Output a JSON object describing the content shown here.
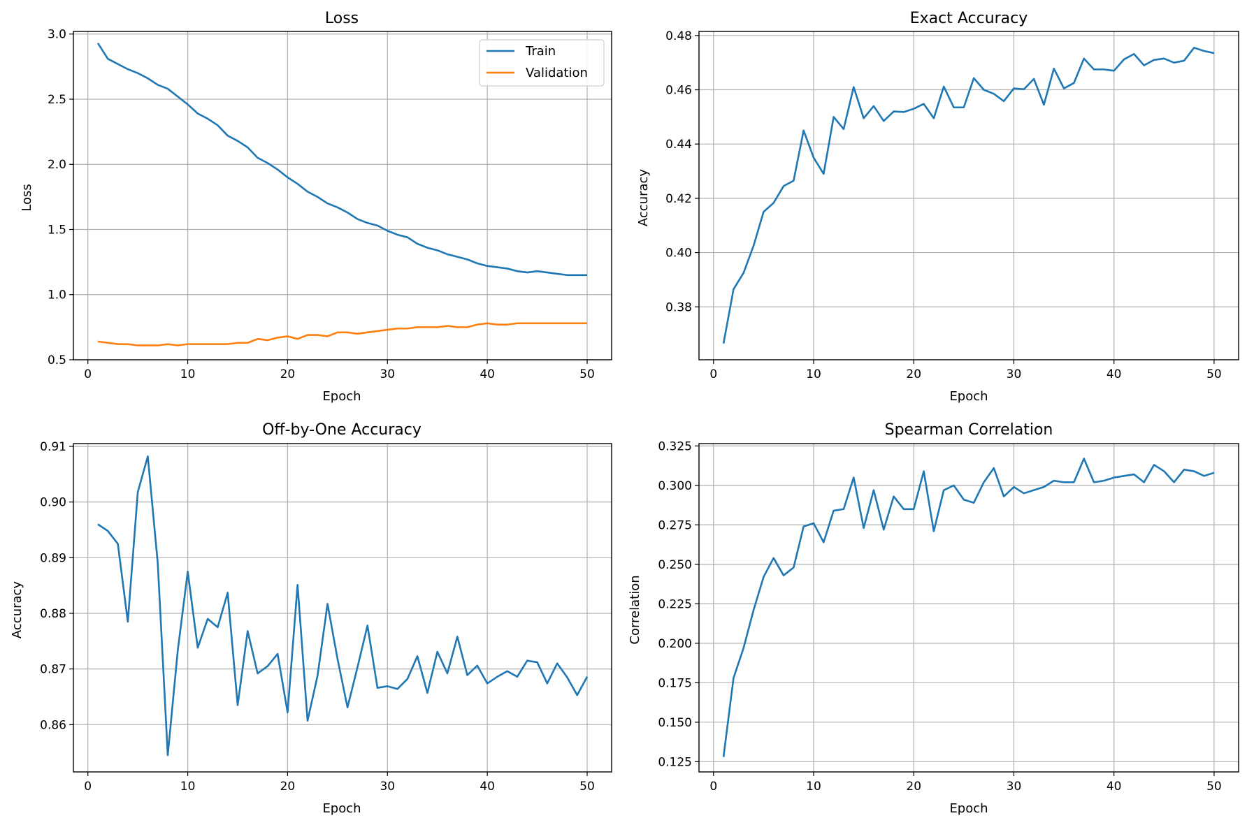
{
  "colors": {
    "train": "#1f77b4",
    "validation": "#ff7f0e",
    "grid": "#b0b0b0"
  },
  "chart_data": [
    {
      "type": "line",
      "title": "Loss",
      "xlabel": "Epoch",
      "ylabel": "Loss",
      "xlim": [
        -1.45,
        52.45
      ],
      "ylim": [
        0.5,
        3.02
      ],
      "xticks": [
        0,
        10,
        20,
        30,
        40,
        50
      ],
      "xtick_labels": [
        "0",
        "10",
        "20",
        "30",
        "40",
        "50"
      ],
      "yticks": [
        0.5,
        1.0,
        1.5,
        2.0,
        2.5,
        3.0
      ],
      "ytick_labels": [
        "0.5",
        "1.0",
        "1.5",
        "2.0",
        "2.5",
        "3.0"
      ],
      "grid": true,
      "legend": "top-right",
      "x": [
        1,
        2,
        3,
        4,
        5,
        6,
        7,
        8,
        9,
        10,
        11,
        12,
        13,
        14,
        15,
        16,
        17,
        18,
        19,
        20,
        21,
        22,
        23,
        24,
        25,
        26,
        27,
        28,
        29,
        30,
        31,
        32,
        33,
        34,
        35,
        36,
        37,
        38,
        39,
        40,
        41,
        42,
        43,
        44,
        45,
        46,
        47,
        48,
        49,
        50
      ],
      "series": [
        {
          "name": "Train",
          "color": "#1f77b4",
          "values": [
            2.93,
            2.81,
            2.77,
            2.73,
            2.7,
            2.66,
            2.61,
            2.58,
            2.52,
            2.46,
            2.39,
            2.35,
            2.3,
            2.22,
            2.18,
            2.13,
            2.05,
            2.01,
            1.96,
            1.9,
            1.85,
            1.79,
            1.75,
            1.7,
            1.67,
            1.63,
            1.58,
            1.55,
            1.53,
            1.49,
            1.46,
            1.44,
            1.39,
            1.36,
            1.34,
            1.31,
            1.29,
            1.27,
            1.24,
            1.22,
            1.21,
            1.2,
            1.18,
            1.17,
            1.18,
            1.17,
            1.16,
            1.15,
            1.15,
            1.15
          ]
        },
        {
          "name": "Validation",
          "color": "#ff7f0e",
          "values": [
            0.64,
            0.63,
            0.62,
            0.62,
            0.61,
            0.61,
            0.61,
            0.62,
            0.61,
            0.62,
            0.62,
            0.62,
            0.62,
            0.62,
            0.63,
            0.63,
            0.66,
            0.65,
            0.67,
            0.68,
            0.66,
            0.69,
            0.69,
            0.68,
            0.71,
            0.71,
            0.7,
            0.71,
            0.72,
            0.73,
            0.74,
            0.74,
            0.75,
            0.75,
            0.75,
            0.76,
            0.75,
            0.75,
            0.77,
            0.78,
            0.77,
            0.77,
            0.78,
            0.78,
            0.78,
            0.78,
            0.78,
            0.78,
            0.78,
            0.78
          ]
        }
      ]
    },
    {
      "type": "line",
      "title": "Exact Accuracy",
      "xlabel": "Epoch",
      "ylabel": "Accuracy",
      "xlim": [
        -1.45,
        52.45
      ],
      "ylim": [
        0.3605,
        0.4815
      ],
      "xticks": [
        0,
        10,
        20,
        30,
        40,
        50
      ],
      "xtick_labels": [
        "0",
        "10",
        "20",
        "30",
        "40",
        "50"
      ],
      "yticks": [
        0.38,
        0.4,
        0.42,
        0.44,
        0.46,
        0.48
      ],
      "ytick_labels": [
        "0.38",
        "0.40",
        "0.42",
        "0.44",
        "0.46",
        "0.48"
      ],
      "grid": true,
      "x": [
        1,
        2,
        3,
        4,
        5,
        6,
        7,
        8,
        9,
        10,
        11,
        12,
        13,
        14,
        15,
        16,
        17,
        18,
        19,
        20,
        21,
        22,
        23,
        24,
        25,
        26,
        27,
        28,
        29,
        30,
        31,
        32,
        33,
        34,
        35,
        36,
        37,
        38,
        39,
        40,
        41,
        42,
        43,
        44,
        45,
        46,
        47,
        48,
        49,
        50
      ],
      "series": [
        {
          "color": "#1f77b4",
          "values": [
            0.3665,
            0.3865,
            0.3925,
            0.4025,
            0.415,
            0.4183,
            0.4245,
            0.4265,
            0.445,
            0.435,
            0.429,
            0.45,
            0.4455,
            0.461,
            0.4495,
            0.454,
            0.4485,
            0.452,
            0.4518,
            0.453,
            0.4548,
            0.4495,
            0.4612,
            0.4535,
            0.4535,
            0.4643,
            0.46,
            0.4585,
            0.4558,
            0.4605,
            0.4602,
            0.464,
            0.4545,
            0.4678,
            0.4605,
            0.4625,
            0.4715,
            0.4675,
            0.4675,
            0.467,
            0.4712,
            0.4732,
            0.469,
            0.471,
            0.4715,
            0.47,
            0.4707,
            0.4755,
            0.4743,
            0.4735
          ]
        }
      ]
    },
    {
      "type": "line",
      "title": "Off-by-One Accuracy",
      "xlabel": "Epoch",
      "ylabel": "Accuracy",
      "xlim": [
        -1.45,
        52.45
      ],
      "ylim": [
        0.8515,
        0.9105
      ],
      "xticks": [
        0,
        10,
        20,
        30,
        40,
        50
      ],
      "xtick_labels": [
        "0",
        "10",
        "20",
        "30",
        "40",
        "50"
      ],
      "yticks": [
        0.86,
        0.87,
        0.88,
        0.89,
        0.9,
        0.91
      ],
      "ytick_labels": [
        "0.86",
        "0.87",
        "0.88",
        "0.89",
        "0.90",
        "0.91"
      ],
      "grid": true,
      "x": [
        1,
        2,
        3,
        4,
        5,
        6,
        7,
        8,
        9,
        10,
        11,
        12,
        13,
        14,
        15,
        16,
        17,
        18,
        19,
        20,
        21,
        22,
        23,
        24,
        25,
        26,
        27,
        28,
        29,
        30,
        31,
        32,
        33,
        34,
        35,
        36,
        37,
        38,
        39,
        40,
        41,
        42,
        43,
        44,
        45,
        46,
        47,
        48,
        49,
        50
      ],
      "series": [
        {
          "color": "#1f77b4",
          "values": [
            0.896,
            0.8948,
            0.8925,
            0.8785,
            0.9018,
            0.9082,
            0.889,
            0.8545,
            0.8733,
            0.8875,
            0.8738,
            0.879,
            0.8775,
            0.8837,
            0.8635,
            0.8768,
            0.8692,
            0.8705,
            0.8727,
            0.8622,
            0.8851,
            0.8607,
            0.8688,
            0.8817,
            0.8718,
            0.8631,
            0.8703,
            0.8778,
            0.8666,
            0.8669,
            0.8664,
            0.8682,
            0.8723,
            0.8657,
            0.8731,
            0.8692,
            0.8758,
            0.8689,
            0.8706,
            0.8674,
            0.8686,
            0.8696,
            0.8686,
            0.8715,
            0.8712,
            0.8674,
            0.871,
            0.8685,
            0.8653,
            0.8686
          ]
        }
      ]
    },
    {
      "type": "line",
      "title": "Spearman Correlation",
      "xlabel": "Epoch",
      "ylabel": "Correlation",
      "xlim": [
        -1.45,
        52.45
      ],
      "ylim": [
        0.1185,
        0.3265
      ],
      "xticks": [
        0,
        10,
        20,
        30,
        40,
        50
      ],
      "xtick_labels": [
        "0",
        "10",
        "20",
        "30",
        "40",
        "50"
      ],
      "yticks": [
        0.125,
        0.15,
        0.175,
        0.2,
        0.225,
        0.25,
        0.275,
        0.3,
        0.325
      ],
      "ytick_labels": [
        "0.125",
        "0.150",
        "0.175",
        "0.200",
        "0.225",
        "0.250",
        "0.275",
        "0.300",
        "0.325"
      ],
      "grid": true,
      "x": [
        1,
        2,
        3,
        4,
        5,
        6,
        7,
        8,
        9,
        10,
        11,
        12,
        13,
        14,
        15,
        16,
        17,
        18,
        19,
        20,
        21,
        22,
        23,
        24,
        25,
        26,
        27,
        28,
        29,
        30,
        31,
        32,
        33,
        34,
        35,
        36,
        37,
        38,
        39,
        40,
        41,
        42,
        43,
        44,
        45,
        46,
        47,
        48,
        49,
        50
      ],
      "series": [
        {
          "color": "#1f77b4",
          "values": [
            0.128,
            0.178,
            0.197,
            0.221,
            0.242,
            0.254,
            0.243,
            0.248,
            0.274,
            0.276,
            0.264,
            0.284,
            0.285,
            0.305,
            0.273,
            0.297,
            0.272,
            0.293,
            0.285,
            0.285,
            0.309,
            0.271,
            0.297,
            0.3,
            0.291,
            0.289,
            0.302,
            0.311,
            0.293,
            0.299,
            0.295,
            0.297,
            0.299,
            0.303,
            0.302,
            0.302,
            0.317,
            0.302,
            0.303,
            0.305,
            0.306,
            0.307,
            0.302,
            0.313,
            0.309,
            0.302,
            0.31,
            0.309,
            0.306,
            0.308
          ]
        }
      ]
    }
  ]
}
